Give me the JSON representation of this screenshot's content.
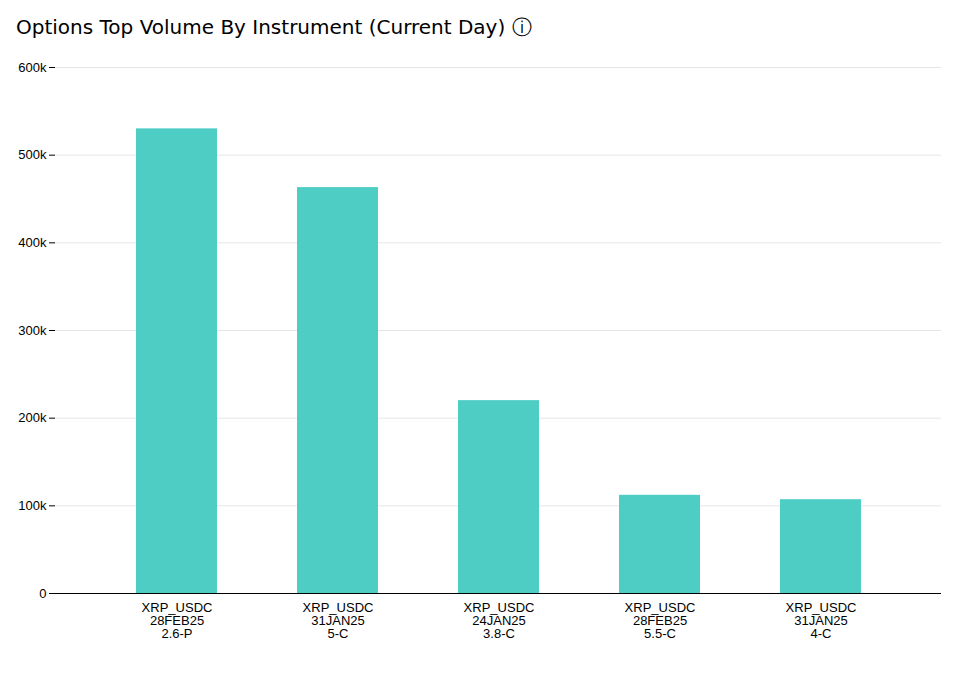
{
  "chart_data": {
    "type": "bar",
    "title": "Options Top Volume By Instrument (Current Day)  ⓘ",
    "categories": [
      "XRP_USDC\n28FEB25\n2.6-P",
      "XRP_USDC\n31JAN25\n5-C",
      "XRP_USDC\n24JAN25\n3.8-C",
      "XRP_USDC\n28FEB25\n5.5-C",
      "XRP_USDC\n31JAN25\n4-C"
    ],
    "values": [
      530000,
      463000,
      220000,
      112000,
      107000
    ],
    "color": "#4ECDC4",
    "ylim": [
      0,
      600000
    ],
    "yticks": [
      0,
      {
        "value": 100000,
        "label": "100k"
      },
      {
        "value": 200000,
        "label": "200k"
      },
      {
        "value": 300000,
        "label": "300k"
      },
      {
        "value": 400000,
        "label": "400k"
      },
      {
        "value": 500000,
        "label": "500k"
      },
      {
        "value": 600000,
        "label": "600k"
      }
    ],
    "grid": true
  }
}
